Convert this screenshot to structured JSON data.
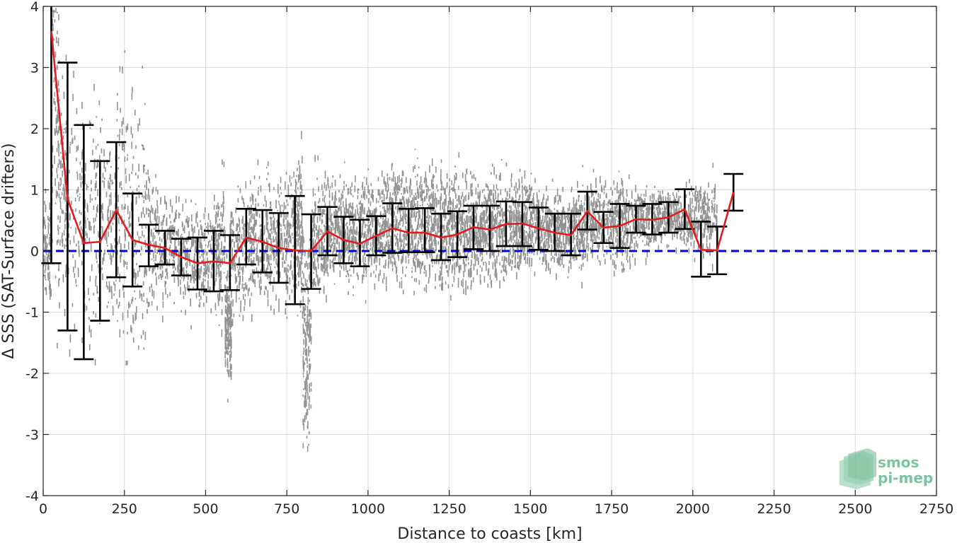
{
  "chart_data": {
    "type": "scatter",
    "title": "",
    "xlabel": "Distance to coasts [km]",
    "ylabel": "Δ SSS (SAT-Surface drifters)",
    "xlim": [
      0,
      2750
    ],
    "ylim": [
      -4,
      4
    ],
    "xticks": [
      0,
      250,
      500,
      750,
      1000,
      1250,
      1500,
      1750,
      2000,
      2250,
      2500,
      2750
    ],
    "yticks": [
      -4,
      -3,
      -2,
      -1,
      0,
      1,
      2,
      3,
      4
    ],
    "grid": true,
    "series": [
      {
        "kind": "scatter-cloud",
        "color": "#808080",
        "bin_stats": [
          {
            "x": 0,
            "mean": 0.0,
            "std": 0.4
          },
          {
            "x": 25,
            "mean": 2.2,
            "std": 1.2
          },
          {
            "x": 50,
            "mean": 1.0,
            "std": 0.9
          },
          {
            "x": 75,
            "mean": 0.8,
            "std": 1.0
          },
          {
            "x": 125,
            "mean": 0.3,
            "std": 1.0
          },
          {
            "x": 175,
            "mean": 0.4,
            "std": 0.8
          },
          {
            "x": 225,
            "mean": 0.6,
            "std": 1.1
          },
          {
            "x": 275,
            "mean": 0.4,
            "std": 0.9
          },
          {
            "x": 325,
            "mean": 0.1,
            "std": 0.5
          },
          {
            "x": 375,
            "mean": 0.1,
            "std": 0.4
          },
          {
            "x": 425,
            "mean": -0.05,
            "std": 0.4
          },
          {
            "x": 475,
            "mean": -0.1,
            "std": 0.4
          },
          {
            "x": 525,
            "mean": -0.05,
            "std": 0.5
          },
          {
            "x": 560,
            "mean": -1.2,
            "std": 0.4
          },
          {
            "x": 575,
            "mean": -0.05,
            "std": 0.5
          },
          {
            "x": 625,
            "mean": 0.2,
            "std": 0.5
          },
          {
            "x": 675,
            "mean": 0.2,
            "std": 0.5
          },
          {
            "x": 725,
            "mean": 0.2,
            "std": 0.5
          },
          {
            "x": 775,
            "mean": 0.3,
            "std": 0.6
          },
          {
            "x": 800,
            "mean": -1.5,
            "std": 0.8
          },
          {
            "x": 825,
            "mean": 0.2,
            "std": 0.5
          },
          {
            "x": 875,
            "mean": 0.4,
            "std": 0.4
          },
          {
            "x": 925,
            "mean": 0.3,
            "std": 0.4
          },
          {
            "x": 975,
            "mean": 0.3,
            "std": 0.4
          },
          {
            "x": 1025,
            "mean": 0.4,
            "std": 0.45
          },
          {
            "x": 1075,
            "mean": 0.45,
            "std": 0.45
          },
          {
            "x": 1125,
            "mean": 0.4,
            "std": 0.45
          },
          {
            "x": 1175,
            "mean": 0.4,
            "std": 0.45
          },
          {
            "x": 1225,
            "mean": 0.35,
            "std": 0.45
          },
          {
            "x": 1275,
            "mean": 0.35,
            "std": 0.45
          },
          {
            "x": 1325,
            "mean": 0.4,
            "std": 0.4
          },
          {
            "x": 1375,
            "mean": 0.4,
            "std": 0.4
          },
          {
            "x": 1425,
            "mean": 0.45,
            "std": 0.4
          },
          {
            "x": 1475,
            "mean": 0.45,
            "std": 0.35
          },
          {
            "x": 1525,
            "mean": 0.35,
            "std": 0.3
          },
          {
            "x": 1575,
            "mean": 0.3,
            "std": 0.3
          },
          {
            "x": 1625,
            "mean": 0.4,
            "std": 0.35
          },
          {
            "x": 1675,
            "mean": 0.5,
            "std": 0.3
          },
          {
            "x": 1725,
            "mean": 0.45,
            "std": 0.3
          },
          {
            "x": 1775,
            "mean": 0.45,
            "std": 0.35
          },
          {
            "x": 1825,
            "mean": 0.5,
            "std": 0.25
          },
          {
            "x": 1875,
            "mean": 0.55,
            "std": 0.2
          },
          {
            "x": 1925,
            "mean": 0.55,
            "std": 0.2
          },
          {
            "x": 1975,
            "mean": 0.6,
            "std": 0.25
          },
          {
            "x": 2025,
            "mean": 0.5,
            "std": 0.3
          }
        ]
      },
      {
        "kind": "mean-line",
        "color": "#e41a1c",
        "x": [
          25,
          75,
          125,
          175,
          225,
          275,
          325,
          375,
          425,
          475,
          525,
          575,
          625,
          675,
          725,
          775,
          825,
          875,
          925,
          975,
          1025,
          1075,
          1125,
          1175,
          1225,
          1275,
          1325,
          1375,
          1425,
          1475,
          1525,
          1575,
          1625,
          1675,
          1725,
          1775,
          1825,
          1875,
          1925,
          1975,
          2025,
          2075,
          2125
        ],
        "y": [
          3.6,
          0.85,
          0.13,
          0.15,
          0.67,
          0.18,
          0.1,
          0.05,
          -0.1,
          -0.2,
          -0.17,
          -0.2,
          0.22,
          0.15,
          0.05,
          0.01,
          0.0,
          0.32,
          0.18,
          0.12,
          0.25,
          0.37,
          0.3,
          0.3,
          0.22,
          0.27,
          0.39,
          0.35,
          0.44,
          0.45,
          0.37,
          0.3,
          0.26,
          0.65,
          0.38,
          0.41,
          0.52,
          0.51,
          0.55,
          0.68,
          0.02,
          0.01,
          0.96
        ],
        "err_low": [
          -0.2,
          -1.3,
          -1.77,
          -1.14,
          -0.43,
          -0.58,
          -0.25,
          -0.22,
          -0.4,
          -0.63,
          -0.66,
          -0.64,
          -0.22,
          -0.35,
          -0.52,
          -0.87,
          -0.62,
          -0.07,
          -0.2,
          -0.25,
          -0.07,
          -0.03,
          -0.02,
          -0.02,
          -0.15,
          -0.1,
          0.03,
          0.0,
          0.08,
          0.08,
          0.02,
          0.0,
          -0.07,
          0.35,
          0.13,
          0.05,
          0.3,
          0.27,
          0.3,
          0.36,
          -0.42,
          -0.38,
          0.66
        ],
        "err_high": [
          4.0,
          3.08,
          2.06,
          1.47,
          1.78,
          0.94,
          0.43,
          0.33,
          0.2,
          0.22,
          0.33,
          0.26,
          0.69,
          0.67,
          0.62,
          0.9,
          0.6,
          0.72,
          0.56,
          0.51,
          0.57,
          0.78,
          0.69,
          0.7,
          0.61,
          0.65,
          0.74,
          0.74,
          0.81,
          0.8,
          0.71,
          0.61,
          0.61,
          0.97,
          0.64,
          0.77,
          0.74,
          0.77,
          0.8,
          1.01,
          0.48,
          0.4,
          1.26
        ]
      },
      {
        "kind": "reference-line",
        "color": "#0000dd",
        "y": 0
      }
    ]
  },
  "logo": {
    "line1": "smos",
    "line2": "pi-mep",
    "color": "#7cc49f"
  }
}
